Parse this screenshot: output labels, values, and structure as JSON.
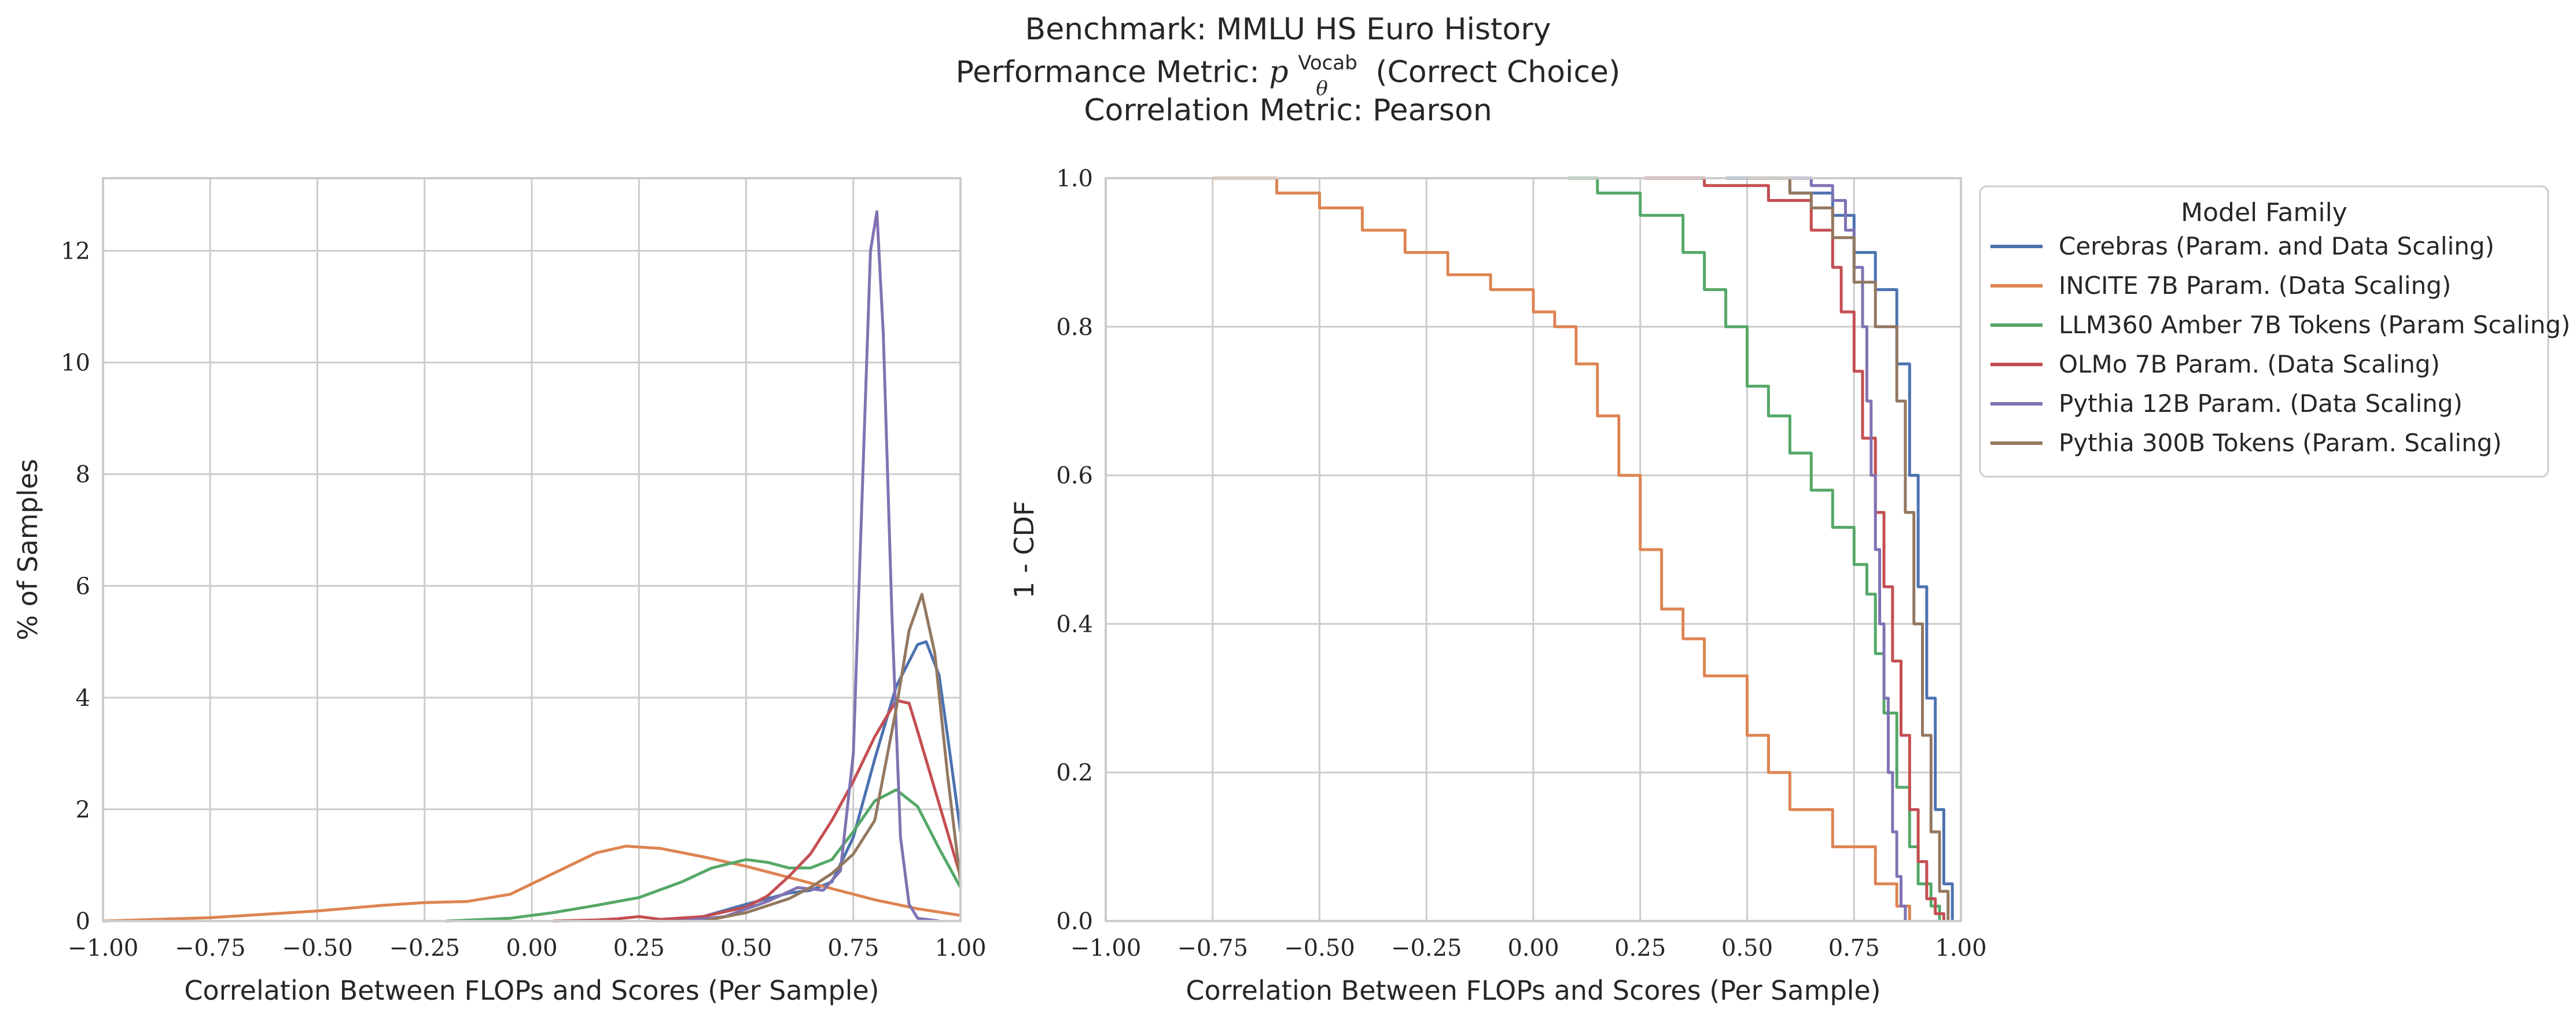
{
  "figure": {
    "title_lines": [
      "Benchmark: MMLU HS Euro History",
      "Performance Metric: p_θ^Vocab(Correct Choice)",
      "Correlation Metric: Pearson"
    ],
    "metric_parts": {
      "prefix": "Performance Metric: ",
      "symbol": "p",
      "subscript": "θ",
      "superscript": "Vocab",
      "suffix": "(Correct Choice)"
    }
  },
  "colors": {
    "Cerebras": "#4c72b0",
    "INCITE": "#dd8452",
    "LLM360": "#55a868",
    "OLMo": "#c44e52",
    "Pythia12B": "#8172b3",
    "Pythia300B": "#937860"
  },
  "chart_data": [
    {
      "type": "line",
      "kind": "kde",
      "xlabel": "Correlation Between FLOPs and Scores (Per Sample)",
      "ylabel": "% of Samples",
      "xlim": [
        -1.0,
        1.0
      ],
      "ylim": [
        0,
        13.3
      ],
      "xticks": [
        -1.0,
        -0.75,
        -0.5,
        -0.25,
        0.0,
        0.25,
        0.5,
        0.75,
        1.0
      ],
      "xtick_labels": [
        "−1.00",
        "−0.75",
        "−0.50",
        "−0.25",
        "0.00",
        "0.25",
        "0.50",
        "0.75",
        "1.00"
      ],
      "yticks": [
        0,
        2,
        4,
        6,
        8,
        10,
        12
      ],
      "ytick_labels": [
        "0",
        "2",
        "4",
        "6",
        "8",
        "10",
        "12"
      ],
      "grid": true,
      "series": [
        {
          "name": "Cerebras (Param. and Data Scaling)",
          "color_key": "Cerebras",
          "x": [
            0.3,
            0.4,
            0.5,
            0.6,
            0.65,
            0.7,
            0.75,
            0.8,
            0.85,
            0.9,
            0.92,
            0.95,
            0.97,
            1.0
          ],
          "y": [
            0.0,
            0.08,
            0.3,
            0.5,
            0.55,
            0.7,
            1.5,
            2.9,
            4.2,
            4.95,
            5.0,
            4.4,
            3.3,
            1.6
          ]
        },
        {
          "name": "INCITE 7B Param. (Data Scaling)",
          "color_key": "INCITE",
          "x": [
            -1.0,
            -0.75,
            -0.5,
            -0.35,
            -0.25,
            -0.15,
            -0.05,
            0.05,
            0.15,
            0.22,
            0.3,
            0.4,
            0.5,
            0.6,
            0.7,
            0.8,
            0.9,
            1.0
          ],
          "y": [
            0.0,
            0.06,
            0.18,
            0.28,
            0.33,
            0.35,
            0.48,
            0.85,
            1.22,
            1.34,
            1.3,
            1.15,
            0.98,
            0.78,
            0.58,
            0.38,
            0.22,
            0.1
          ]
        },
        {
          "name": "LLM360 Amber 7B Tokens (Param Scaling)",
          "color_key": "LLM360",
          "x": [
            -0.2,
            -0.05,
            0.05,
            0.15,
            0.25,
            0.35,
            0.42,
            0.5,
            0.55,
            0.6,
            0.65,
            0.7,
            0.75,
            0.8,
            0.85,
            0.9,
            0.95,
            1.0
          ],
          "y": [
            0.0,
            0.05,
            0.15,
            0.28,
            0.42,
            0.7,
            0.95,
            1.1,
            1.05,
            0.95,
            0.95,
            1.1,
            1.6,
            2.15,
            2.35,
            2.05,
            1.3,
            0.6
          ]
        },
        {
          "name": "OLMo 7B Param. (Data Scaling)",
          "color_key": "OLMo",
          "x": [
            0.05,
            0.15,
            0.2,
            0.25,
            0.3,
            0.4,
            0.5,
            0.55,
            0.6,
            0.65,
            0.7,
            0.75,
            0.8,
            0.85,
            0.88,
            0.9,
            0.95,
            1.0
          ],
          "y": [
            0.0,
            0.02,
            0.04,
            0.08,
            0.03,
            0.08,
            0.25,
            0.45,
            0.8,
            1.2,
            1.8,
            2.5,
            3.3,
            3.95,
            3.9,
            3.4,
            2.1,
            0.8
          ]
        },
        {
          "name": "Pythia 12B Param. (Data Scaling)",
          "color_key": "Pythia12B",
          "x": [
            0.35,
            0.45,
            0.55,
            0.62,
            0.68,
            0.72,
            0.75,
            0.77,
            0.79,
            0.805,
            0.82,
            0.84,
            0.86,
            0.88,
            0.9,
            0.95
          ],
          "y": [
            0.0,
            0.08,
            0.35,
            0.6,
            0.55,
            0.9,
            3.0,
            7.5,
            12.0,
            12.7,
            10.5,
            5.5,
            1.5,
            0.3,
            0.05,
            0.0
          ]
        },
        {
          "name": "Pythia 300B Tokens (Param. Scaling)",
          "color_key": "Pythia300B",
          "x": [
            0.4,
            0.5,
            0.6,
            0.65,
            0.7,
            0.75,
            0.8,
            0.85,
            0.88,
            0.91,
            0.94,
            0.97,
            1.0
          ],
          "y": [
            0.0,
            0.15,
            0.4,
            0.6,
            0.85,
            1.2,
            1.8,
            3.8,
            5.2,
            5.85,
            4.8,
            2.6,
            0.7
          ]
        }
      ]
    },
    {
      "type": "line",
      "kind": "survival-step",
      "xlabel": "Correlation Between FLOPs and Scores (Per Sample)",
      "ylabel": "1 - CDF",
      "xlim": [
        -1.0,
        1.0
      ],
      "ylim": [
        0.0,
        1.0
      ],
      "xticks": [
        -1.0,
        -0.75,
        -0.5,
        -0.25,
        0.0,
        0.25,
        0.5,
        0.75,
        1.0
      ],
      "xtick_labels": [
        "−1.00",
        "−0.75",
        "−0.50",
        "−0.25",
        "0.00",
        "0.25",
        "0.50",
        "0.75",
        "1.00"
      ],
      "yticks": [
        0.0,
        0.2,
        0.4,
        0.6,
        0.8,
        1.0
      ],
      "ytick_labels": [
        "0.0",
        "0.2",
        "0.4",
        "0.6",
        "0.8",
        "1.0"
      ],
      "grid": true,
      "legend": {
        "title": "Model Family",
        "placement": "outside-right"
      },
      "series": [
        {
          "name": "Cerebras (Param. and Data Scaling)",
          "color_key": "Cerebras",
          "x": [
            0.45,
            0.6,
            0.7,
            0.75,
            0.8,
            0.85,
            0.88,
            0.9,
            0.92,
            0.94,
            0.96,
            0.98
          ],
          "y": [
            1.0,
            0.98,
            0.95,
            0.9,
            0.85,
            0.75,
            0.6,
            0.45,
            0.3,
            0.15,
            0.05,
            0.0
          ]
        },
        {
          "name": "INCITE 7B Param. (Data Scaling)",
          "color_key": "INCITE",
          "x": [
            -0.75,
            -0.6,
            -0.5,
            -0.4,
            -0.3,
            -0.2,
            -0.1,
            0.0,
            0.05,
            0.1,
            0.15,
            0.2,
            0.25,
            0.3,
            0.35,
            0.4,
            0.5,
            0.55,
            0.6,
            0.7,
            0.8,
            0.85,
            0.88
          ],
          "y": [
            1.0,
            0.98,
            0.96,
            0.93,
            0.9,
            0.87,
            0.85,
            0.82,
            0.8,
            0.75,
            0.68,
            0.6,
            0.5,
            0.42,
            0.38,
            0.33,
            0.25,
            0.2,
            0.15,
            0.1,
            0.05,
            0.02,
            0.0
          ]
        },
        {
          "name": "LLM360 Amber 7B Tokens (Param Scaling)",
          "color_key": "LLM360",
          "x": [
            0.08,
            0.15,
            0.25,
            0.35,
            0.4,
            0.45,
            0.5,
            0.55,
            0.6,
            0.65,
            0.7,
            0.75,
            0.78,
            0.8,
            0.82,
            0.85,
            0.88,
            0.9,
            0.93,
            0.95
          ],
          "y": [
            1.0,
            0.98,
            0.95,
            0.9,
            0.85,
            0.8,
            0.72,
            0.68,
            0.63,
            0.58,
            0.53,
            0.48,
            0.44,
            0.36,
            0.28,
            0.18,
            0.1,
            0.05,
            0.02,
            0.0
          ]
        },
        {
          "name": "OLMo 7B Param. (Data Scaling)",
          "color_key": "OLMo",
          "x": [
            0.26,
            0.4,
            0.55,
            0.65,
            0.7,
            0.72,
            0.75,
            0.77,
            0.8,
            0.82,
            0.84,
            0.86,
            0.88,
            0.9,
            0.92,
            0.94,
            0.96
          ],
          "y": [
            1.0,
            0.99,
            0.97,
            0.93,
            0.88,
            0.82,
            0.74,
            0.65,
            0.55,
            0.45,
            0.35,
            0.25,
            0.15,
            0.08,
            0.03,
            0.01,
            0.0
          ]
        },
        {
          "name": "Pythia 12B Param. (Data Scaling)",
          "color_key": "Pythia12B",
          "x": [
            0.55,
            0.65,
            0.7,
            0.73,
            0.75,
            0.77,
            0.78,
            0.79,
            0.8,
            0.81,
            0.82,
            0.83,
            0.84,
            0.85,
            0.86,
            0.87
          ],
          "y": [
            1.0,
            0.99,
            0.97,
            0.93,
            0.88,
            0.8,
            0.7,
            0.6,
            0.5,
            0.4,
            0.3,
            0.2,
            0.12,
            0.06,
            0.02,
            0.0
          ]
        },
        {
          "name": "Pythia 300B Tokens (Param. Scaling)",
          "color_key": "Pythia300B",
          "x": [
            0.5,
            0.6,
            0.65,
            0.7,
            0.75,
            0.8,
            0.85,
            0.87,
            0.89,
            0.91,
            0.93,
            0.95,
            0.97
          ],
          "y": [
            1.0,
            0.98,
            0.96,
            0.92,
            0.86,
            0.8,
            0.7,
            0.55,
            0.4,
            0.25,
            0.12,
            0.04,
            0.0
          ]
        }
      ]
    }
  ]
}
